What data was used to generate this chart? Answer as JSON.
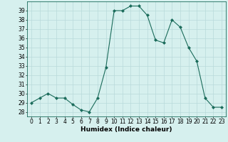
{
  "x": [
    0,
    1,
    2,
    3,
    4,
    5,
    6,
    7,
    8,
    9,
    10,
    11,
    12,
    13,
    14,
    15,
    16,
    17,
    18,
    19,
    20,
    21,
    22,
    23
  ],
  "y": [
    29,
    29.5,
    30,
    29.5,
    29.5,
    28.8,
    28.2,
    28,
    29.5,
    32.8,
    39,
    39,
    39.5,
    39.5,
    38.5,
    35.8,
    35.5,
    38,
    37.2,
    35,
    33.5,
    29.5,
    28.5,
    28.5
  ],
  "line_color": "#1a6b5a",
  "marker": "D",
  "marker_size": 2,
  "bg_color": "#d6f0ee",
  "grid_color": "#b8dada",
  "xlabel": "Humidex (Indice chaleur)",
  "xlim": [
    -0.5,
    23.5
  ],
  "ylim": [
    27.5,
    40
  ],
  "yticks": [
    28,
    29,
    30,
    31,
    32,
    33,
    34,
    35,
    36,
    37,
    38,
    39
  ],
  "xticks": [
    0,
    1,
    2,
    3,
    4,
    5,
    6,
    7,
    8,
    9,
    10,
    11,
    12,
    13,
    14,
    15,
    16,
    17,
    18,
    19,
    20,
    21,
    22,
    23
  ],
  "xlabel_fontsize": 6.5,
  "tick_fontsize": 5.5
}
